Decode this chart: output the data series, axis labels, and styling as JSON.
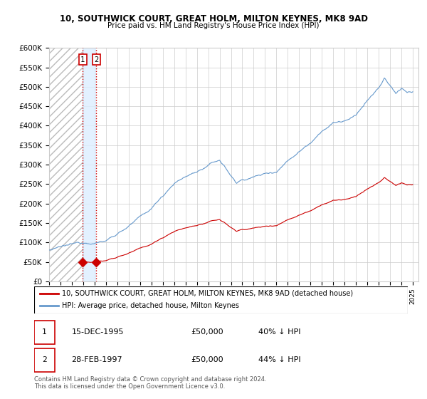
{
  "title": "10, SOUTHWICK COURT, GREAT HOLM, MILTON KEYNES, MK8 9AD",
  "subtitle": "Price paid vs. HM Land Registry's House Price Index (HPI)",
  "ylim": [
    0,
    600000
  ],
  "yticks": [
    0,
    50000,
    100000,
    150000,
    200000,
    250000,
    300000,
    350000,
    400000,
    450000,
    500000,
    550000,
    600000
  ],
  "ytick_labels": [
    "£0",
    "£50K",
    "£100K",
    "£150K",
    "£200K",
    "£250K",
    "£300K",
    "£350K",
    "£400K",
    "£450K",
    "£500K",
    "£550K",
    "£600K"
  ],
  "xlim_start": 1993.0,
  "xlim_end": 2025.5,
  "xtick_years": [
    1993,
    1994,
    1995,
    1996,
    1997,
    1998,
    1999,
    2000,
    2001,
    2002,
    2003,
    2004,
    2005,
    2006,
    2007,
    2008,
    2009,
    2010,
    2011,
    2012,
    2013,
    2014,
    2015,
    2016,
    2017,
    2018,
    2019,
    2020,
    2021,
    2022,
    2023,
    2024,
    2025
  ],
  "sale1_x": 1995.958,
  "sale1_y": 50000,
  "sale2_x": 1997.163,
  "sale2_y": 50000,
  "sale1_date": "15-DEC-1995",
  "sale1_price": "£50,000",
  "sale1_hpi": "40% ↓ HPI",
  "sale2_date": "28-FEB-1997",
  "sale2_price": "£50,000",
  "sale2_hpi": "44% ↓ HPI",
  "red_line_color": "#cc0000",
  "blue_line_color": "#6699cc",
  "shade_color": "#ddeeff",
  "dot_color": "#cc0000",
  "legend_label_red": "10, SOUTHWICK COURT, GREAT HOLM, MILTON KEYNES, MK8 9AD (detached house)",
  "legend_label_blue": "HPI: Average price, detached house, Milton Keynes",
  "footer": "Contains HM Land Registry data © Crown copyright and database right 2024.\nThis data is licensed under the Open Government Licence v3.0.",
  "grid_color": "#cccccc"
}
